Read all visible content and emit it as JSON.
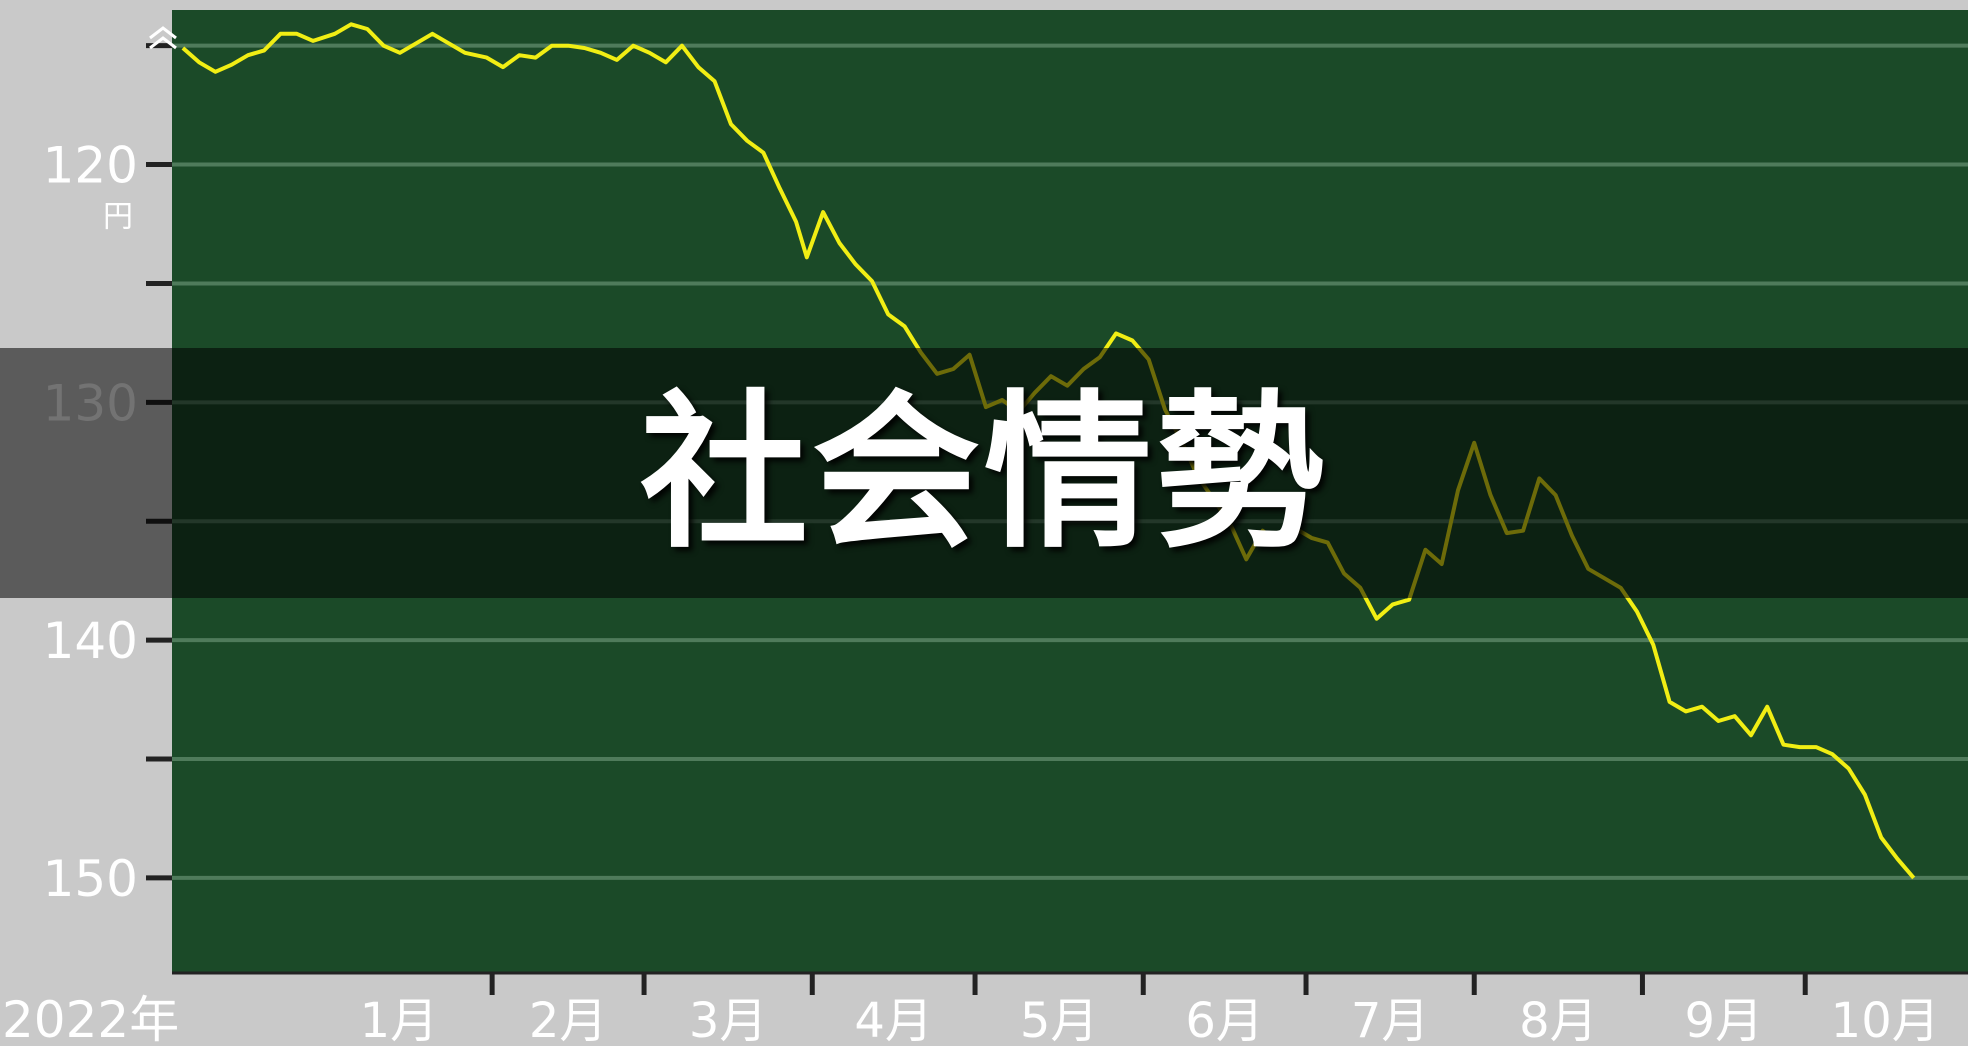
{
  "overlay": {
    "title": "社会情勢"
  },
  "chart_data": {
    "type": "line",
    "title": "",
    "xlabel": "",
    "ylabel": "",
    "y_unit": "円",
    "y_reversed": true,
    "ylim": [
      113.5,
      154
    ],
    "y_ticks": [
      115,
      120,
      125,
      130,
      135,
      140,
      145,
      150
    ],
    "y_tick_labels": {
      "120": "120",
      "130": "130",
      "140": "140",
      "150": "150"
    },
    "grid": true,
    "colors": {
      "plot_background": "#1b4a28",
      "outer_background": "#c9c9c9",
      "line": "#f1ee14",
      "gridline": "#4f7b5b",
      "text": "#ffffff"
    },
    "x_year_label": "2022年",
    "x_ticks": [
      {
        "date": "2022-01-01",
        "label": "1月"
      },
      {
        "date": "2022-02-01",
        "label": "2月"
      },
      {
        "date": "2022-03-01",
        "label": "3月"
      },
      {
        "date": "2022-04-01",
        "label": "4月"
      },
      {
        "date": "2022-05-01",
        "label": "5月"
      },
      {
        "date": "2022-06-01",
        "label": "6月"
      },
      {
        "date": "2022-07-01",
        "label": "7月"
      },
      {
        "date": "2022-08-01",
        "label": "8月"
      },
      {
        "date": "2022-09-01",
        "label": "9月"
      },
      {
        "date": "2022-10-01",
        "label": "10月"
      }
    ],
    "xlim": [
      "2021-12-04",
      "2022-10-31"
    ],
    "series": [
      {
        "values": [
          [
            "2021-12-06",
            115.1
          ],
          [
            "2021-12-09",
            115.7
          ],
          [
            "2021-12-12",
            116.1
          ],
          [
            "2021-12-15",
            115.8
          ],
          [
            "2021-12-18",
            115.4
          ],
          [
            "2021-12-21",
            115.2
          ],
          [
            "2021-12-24",
            114.5
          ],
          [
            "2021-12-27",
            114.5
          ],
          [
            "2021-12-30",
            114.8
          ],
          [
            "2022-01-03",
            114.5
          ],
          [
            "2022-01-06",
            114.1
          ],
          [
            "2022-01-09",
            114.3
          ],
          [
            "2022-01-12",
            115.0
          ],
          [
            "2022-01-15",
            115.3
          ],
          [
            "2022-01-18",
            114.9
          ],
          [
            "2022-01-21",
            114.5
          ],
          [
            "2022-01-24",
            114.9
          ],
          [
            "2022-01-27",
            115.3
          ],
          [
            "2022-01-31",
            115.5
          ],
          [
            "2022-02-03",
            115.9
          ],
          [
            "2022-02-06",
            115.4
          ],
          [
            "2022-02-09",
            115.5
          ],
          [
            "2022-02-12",
            115.0
          ],
          [
            "2022-02-15",
            115.0
          ],
          [
            "2022-02-18",
            115.1
          ],
          [
            "2022-02-21",
            115.3
          ],
          [
            "2022-02-24",
            115.6
          ],
          [
            "2022-02-27",
            115.0
          ],
          [
            "2022-03-02",
            115.3
          ],
          [
            "2022-03-05",
            115.7
          ],
          [
            "2022-03-08",
            115.0
          ],
          [
            "2022-03-11",
            115.9
          ],
          [
            "2022-03-14",
            116.5
          ],
          [
            "2022-03-17",
            118.3
          ],
          [
            "2022-03-20",
            119.0
          ],
          [
            "2022-03-23",
            119.5
          ],
          [
            "2022-03-26",
            121.0
          ],
          [
            "2022-03-29",
            122.4
          ],
          [
            "2022-03-31",
            123.9
          ],
          [
            "2022-04-03",
            122.0
          ],
          [
            "2022-04-06",
            123.3
          ],
          [
            "2022-04-09",
            124.2
          ],
          [
            "2022-04-12",
            124.9
          ],
          [
            "2022-04-15",
            126.3
          ],
          [
            "2022-04-18",
            126.8
          ],
          [
            "2022-04-21",
            127.9
          ],
          [
            "2022-04-24",
            128.8
          ],
          [
            "2022-04-27",
            128.6
          ],
          [
            "2022-04-30",
            128.0
          ],
          [
            "2022-05-03",
            130.2
          ],
          [
            "2022-05-06",
            129.9
          ],
          [
            "2022-05-09",
            130.4
          ],
          [
            "2022-05-12",
            129.6
          ],
          [
            "2022-05-15",
            128.9
          ],
          [
            "2022-05-18",
            129.3
          ],
          [
            "2022-05-21",
            128.6
          ],
          [
            "2022-05-24",
            128.1
          ],
          [
            "2022-05-27",
            127.1
          ],
          [
            "2022-05-30",
            127.4
          ],
          [
            "2022-06-02",
            128.2
          ],
          [
            "2022-06-05",
            130.3
          ],
          [
            "2022-06-08",
            131.6
          ],
          [
            "2022-06-11",
            133.1
          ],
          [
            "2022-06-14",
            134.1
          ],
          [
            "2022-06-17",
            135.1
          ],
          [
            "2022-06-20",
            136.6
          ],
          [
            "2022-06-23",
            135.4
          ],
          [
            "2022-06-26",
            135.9
          ],
          [
            "2022-06-29",
            135.3
          ],
          [
            "2022-07-02",
            135.7
          ],
          [
            "2022-07-05",
            135.9
          ],
          [
            "2022-07-08",
            137.2
          ],
          [
            "2022-07-11",
            137.8
          ],
          [
            "2022-07-14",
            139.1
          ],
          [
            "2022-07-17",
            138.5
          ],
          [
            "2022-07-20",
            138.3
          ],
          [
            "2022-07-23",
            136.2
          ],
          [
            "2022-07-26",
            136.8
          ],
          [
            "2022-07-29",
            133.7
          ],
          [
            "2022-08-01",
            131.7
          ],
          [
            "2022-08-04",
            133.9
          ],
          [
            "2022-08-07",
            135.5
          ],
          [
            "2022-08-10",
            135.4
          ],
          [
            "2022-08-13",
            133.2
          ],
          [
            "2022-08-16",
            133.9
          ],
          [
            "2022-08-19",
            135.6
          ],
          [
            "2022-08-22",
            137.0
          ],
          [
            "2022-08-25",
            137.4
          ],
          [
            "2022-08-28",
            137.8
          ],
          [
            "2022-08-31",
            138.8
          ],
          [
            "2022-09-03",
            140.2
          ],
          [
            "2022-09-06",
            142.6
          ],
          [
            "2022-09-09",
            143.0
          ],
          [
            "2022-09-12",
            142.8
          ],
          [
            "2022-09-15",
            143.4
          ],
          [
            "2022-09-18",
            143.2
          ],
          [
            "2022-09-21",
            144.0
          ],
          [
            "2022-09-24",
            142.8
          ],
          [
            "2022-09-27",
            144.4
          ],
          [
            "2022-09-30",
            144.5
          ],
          [
            "2022-10-03",
            144.5
          ],
          [
            "2022-10-06",
            144.8
          ],
          [
            "2022-10-09",
            145.4
          ],
          [
            "2022-10-12",
            146.5
          ],
          [
            "2022-10-15",
            148.3
          ],
          [
            "2022-10-18",
            149.2
          ],
          [
            "2022-10-21",
            150.0
          ]
        ]
      }
    ]
  }
}
